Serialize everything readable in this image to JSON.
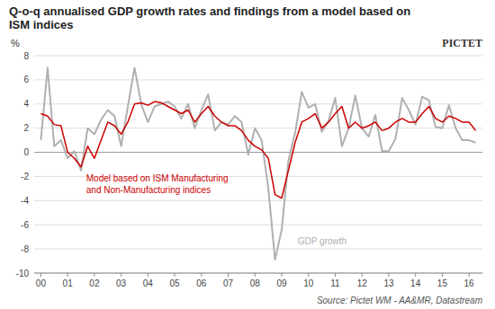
{
  "chart_data": {
    "type": "line",
    "title": "Q-o-q annualised GDP growth rates and findings from a model based on ISM indices",
    "y_label": "%",
    "annotations": [
      "Source: Pictet WM - AA&MR, Datastream",
      "PICTET"
    ],
    "grid": true,
    "xlim": [
      1999.75,
      2016.5
    ],
    "xticks": [
      {
        "value": 2000,
        "label": "00"
      },
      {
        "value": 2001,
        "label": "01"
      },
      {
        "value": 2002,
        "label": "02"
      },
      {
        "value": 2003,
        "label": "03"
      },
      {
        "value": 2004,
        "label": "04"
      },
      {
        "value": 2005,
        "label": "05"
      },
      {
        "value": 2006,
        "label": "06"
      },
      {
        "value": 2007,
        "label": "07"
      },
      {
        "value": 2008,
        "label": "08"
      },
      {
        "value": 2009,
        "label": "09"
      },
      {
        "value": 2010,
        "label": "10"
      },
      {
        "value": 2011,
        "label": "11"
      },
      {
        "value": 2012,
        "label": "12"
      },
      {
        "value": 2013,
        "label": "13"
      },
      {
        "value": 2014,
        "label": "14"
      },
      {
        "value": 2015,
        "label": "15"
      },
      {
        "value": 2016,
        "label": "16"
      }
    ],
    "ylim": [
      -10,
      8
    ],
    "yticks": [
      -10,
      -8,
      -6,
      -4,
      -2,
      0,
      2,
      4,
      6,
      8
    ],
    "x": [
      2000.0,
      2000.25,
      2000.5,
      2000.75,
      2001.0,
      2001.25,
      2001.5,
      2001.75,
      2002.0,
      2002.25,
      2002.5,
      2002.75,
      2003.0,
      2003.25,
      2003.5,
      2003.75,
      2004.0,
      2004.25,
      2004.5,
      2004.75,
      2005.0,
      2005.25,
      2005.5,
      2005.75,
      2006.0,
      2006.25,
      2006.5,
      2006.75,
      2007.0,
      2007.25,
      2007.5,
      2007.75,
      2008.0,
      2008.25,
      2008.5,
      2008.75,
      2009.0,
      2009.25,
      2009.5,
      2009.75,
      2010.0,
      2010.25,
      2010.5,
      2010.75,
      2011.0,
      2011.25,
      2011.5,
      2011.75,
      2012.0,
      2012.25,
      2012.5,
      2012.75,
      2013.0,
      2013.25,
      2013.5,
      2013.75,
      2014.0,
      2014.25,
      2014.5,
      2014.75,
      2015.0,
      2015.25,
      2015.5,
      2015.75,
      2016.0,
      2016.25
    ],
    "series": [
      {
        "name": "GDP growth",
        "color": "#b0b0b0",
        "values": [
          1.0,
          7.0,
          0.5,
          1.0,
          -0.5,
          0.1,
          -1.5,
          2.0,
          1.5,
          2.7,
          3.5,
          3.0,
          0.5,
          3.8,
          7.0,
          4.0,
          2.5,
          3.8,
          4.0,
          4.2,
          3.8,
          2.8,
          4.0,
          2.0,
          3.5,
          4.8,
          1.8,
          2.5,
          2.3,
          3.0,
          2.5,
          -0.2,
          2.0,
          1.0,
          -3.0,
          -8.9,
          -6.4,
          -0.7,
          1.6,
          5.0,
          3.7,
          4.0,
          1.7,
          2.6,
          4.5,
          0.5,
          2.0,
          4.7,
          2.0,
          1.3,
          3.1,
          0.1,
          0.1,
          1.1,
          4.5,
          3.5,
          2.3,
          4.6,
          4.3,
          2.1,
          2.0,
          3.9,
          2.0,
          1.0,
          1.0,
          0.8
        ]
      },
      {
        "name": "Model based on ISM Manufacturing\nand Non-Manufacturing indices",
        "color": "#cc0000",
        "values": [
          3.2,
          3.0,
          2.3,
          2.2,
          0.0,
          -0.5,
          -1.2,
          0.5,
          -0.5,
          1.0,
          2.5,
          2.2,
          1.5,
          2.5,
          4.0,
          4.1,
          3.9,
          4.2,
          4.1,
          3.8,
          3.5,
          3.2,
          3.5,
          2.5,
          3.2,
          3.8,
          3.0,
          2.5,
          2.2,
          2.2,
          1.8,
          1.0,
          0.5,
          0.2,
          -0.5,
          -3.5,
          -3.8,
          -1.5,
          0.8,
          2.5,
          2.8,
          3.2,
          2.0,
          2.5,
          3.2,
          3.8,
          2.0,
          2.5,
          2.0,
          2.2,
          2.5,
          1.8,
          2.0,
          2.5,
          2.8,
          2.5,
          2.5,
          3.2,
          3.8,
          2.8,
          2.5,
          3.0,
          2.8,
          2.5,
          2.5,
          1.8
        ]
      }
    ]
  }
}
